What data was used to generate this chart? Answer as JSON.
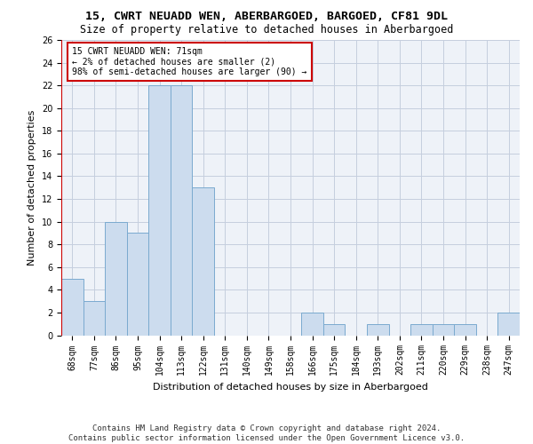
{
  "title": "15, CWRT NEUADD WEN, ABERBARGOED, BARGOED, CF81 9DL",
  "subtitle": "Size of property relative to detached houses in Aberbargoed",
  "xlabel": "Distribution of detached houses by size in Aberbargoed",
  "ylabel": "Number of detached properties",
  "bin_labels": [
    "68sqm",
    "77sqm",
    "86sqm",
    "95sqm",
    "104sqm",
    "113sqm",
    "122sqm",
    "131sqm",
    "140sqm",
    "149sqm",
    "158sqm",
    "166sqm",
    "175sqm",
    "184sqm",
    "193sqm",
    "202sqm",
    "211sqm",
    "220sqm",
    "229sqm",
    "238sqm",
    "247sqm"
  ],
  "bar_values": [
    5,
    3,
    10,
    9,
    22,
    22,
    13,
    0,
    0,
    0,
    0,
    2,
    1,
    0,
    1,
    0,
    1,
    1,
    1,
    0,
    2
  ],
  "bar_color": "#ccdcee",
  "bar_edge_color": "#7aaacf",
  "annotation_box_text": "15 CWRT NEUADD WEN: 71sqm\n← 2% of detached houses are smaller (2)\n98% of semi-detached houses are larger (90) →",
  "annotation_box_color": "#ffffff",
  "annotation_box_edge_color": "#cc0000",
  "annotation_line_color": "#cc0000",
  "ylim": [
    0,
    26
  ],
  "yticks": [
    0,
    2,
    4,
    6,
    8,
    10,
    12,
    14,
    16,
    18,
    20,
    22,
    24,
    26
  ],
  "footnote": "Contains HM Land Registry data © Crown copyright and database right 2024.\nContains public sector information licensed under the Open Government Licence v3.0.",
  "bg_color": "#eef2f8",
  "grid_color": "#c5cede",
  "title_fontsize": 9.5,
  "subtitle_fontsize": 8.5,
  "ylabel_fontsize": 8,
  "xlabel_fontsize": 8,
  "tick_fontsize": 7,
  "annotation_fontsize": 7,
  "footnote_fontsize": 6.5
}
